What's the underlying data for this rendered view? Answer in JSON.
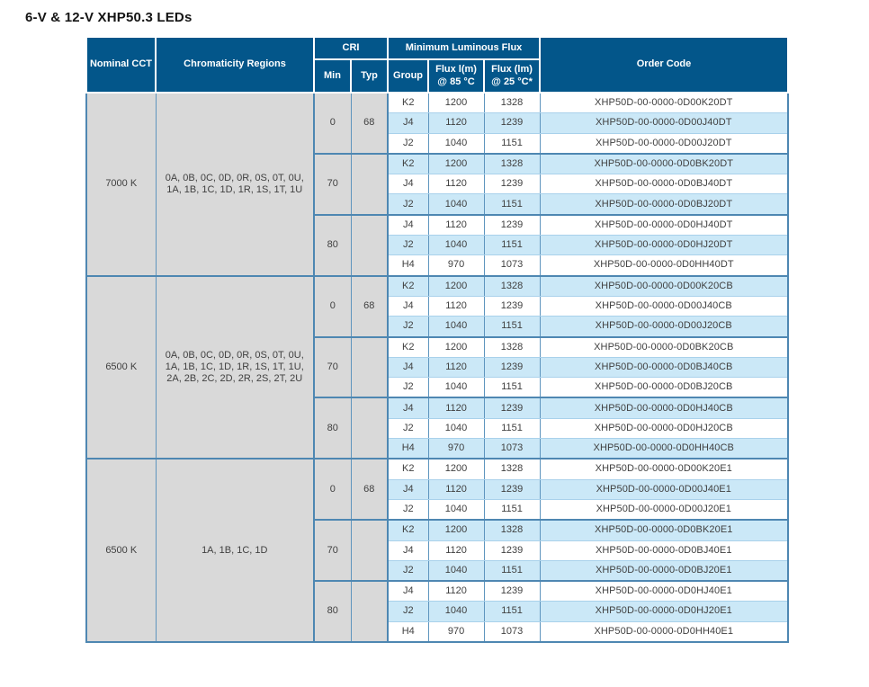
{
  "title": "6-V & 12-V XHP50.3 LEDs",
  "colors": {
    "header_bg": "#03568A",
    "stripe_blue": "#CBE8F7",
    "gray_cell": "#D9D9D9",
    "border_blue": "#4E87B2",
    "body_text": "#404040",
    "header_text": "#FFFFFF"
  },
  "table": {
    "headers": {
      "nominal_cct": "Nominal CCT",
      "chromaticity": "Chromaticity Regions",
      "cri": "CRI",
      "min": "Min",
      "typ": "Typ",
      "flux_header": "Minimum Luminous Flux",
      "group": "Group",
      "flux85": "Flux l(m) @ 85 °C",
      "flux25": "Flux (lm) @ 25 °C*",
      "order_code": "Order Code"
    },
    "groups": [
      {
        "cct": "7000 K",
        "chromaticity": "0A, 0B, 0C, 0D, 0R, 0S, 0T, 0U, 1A, 1B, 1C, 1D, 1R, 1S, 1T, 1U",
        "cri_blocks": [
          {
            "min": "0",
            "typ": "68",
            "rows": [
              [
                "K2",
                "1200",
                "1328",
                "XHP50D-00-0000-0D00K20DT"
              ],
              [
                "J4",
                "1120",
                "1239",
                "XHP50D-00-0000-0D00J40DT"
              ],
              [
                "J2",
                "1040",
                "1151",
                "XHP50D-00-0000-0D00J20DT"
              ]
            ]
          },
          {
            "min": "70",
            "typ": "",
            "rows": [
              [
                "K2",
                "1200",
                "1328",
                "XHP50D-00-0000-0D0BK20DT"
              ],
              [
                "J4",
                "1120",
                "1239",
                "XHP50D-00-0000-0D0BJ40DT"
              ],
              [
                "J2",
                "1040",
                "1151",
                "XHP50D-00-0000-0D0BJ20DT"
              ]
            ]
          },
          {
            "min": "80",
            "typ": "",
            "rows": [
              [
                "J4",
                "1120",
                "1239",
                "XHP50D-00-0000-0D0HJ40DT"
              ],
              [
                "J2",
                "1040",
                "1151",
                "XHP50D-00-0000-0D0HJ20DT"
              ],
              [
                "H4",
                "970",
                "1073",
                "XHP50D-00-0000-0D0HH40DT"
              ]
            ]
          }
        ]
      },
      {
        "cct": "6500 K",
        "chromaticity": "0A, 0B, 0C, 0D, 0R, 0S, 0T, 0U, 1A, 1B, 1C, 1D, 1R, 1S, 1T, 1U, 2A, 2B, 2C, 2D, 2R, 2S, 2T, 2U",
        "cri_blocks": [
          {
            "min": "0",
            "typ": "68",
            "rows": [
              [
                "K2",
                "1200",
                "1328",
                "XHP50D-00-0000-0D00K20CB"
              ],
              [
                "J4",
                "1120",
                "1239",
                "XHP50D-00-0000-0D00J40CB"
              ],
              [
                "J2",
                "1040",
                "1151",
                "XHP50D-00-0000-0D00J20CB"
              ]
            ]
          },
          {
            "min": "70",
            "typ": "",
            "rows": [
              [
                "K2",
                "1200",
                "1328",
                "XHP50D-00-0000-0D0BK20CB"
              ],
              [
                "J4",
                "1120",
                "1239",
                "XHP50D-00-0000-0D0BJ40CB"
              ],
              [
                "J2",
                "1040",
                "1151",
                "XHP50D-00-0000-0D0BJ20CB"
              ]
            ]
          },
          {
            "min": "80",
            "typ": "",
            "rows": [
              [
                "J4",
                "1120",
                "1239",
                "XHP50D-00-0000-0D0HJ40CB"
              ],
              [
                "J2",
                "1040",
                "1151",
                "XHP50D-00-0000-0D0HJ20CB"
              ],
              [
                "H4",
                "970",
                "1073",
                "XHP50D-00-0000-0D0HH40CB"
              ]
            ]
          }
        ]
      },
      {
        "cct": "6500 K",
        "chromaticity": "1A, 1B, 1C, 1D",
        "cri_blocks": [
          {
            "min": "0",
            "typ": "68",
            "rows": [
              [
                "K2",
                "1200",
                "1328",
                "XHP50D-00-0000-0D00K20E1"
              ],
              [
                "J4",
                "1120",
                "1239",
                "XHP50D-00-0000-0D00J40E1"
              ],
              [
                "J2",
                "1040",
                "1151",
                "XHP50D-00-0000-0D00J20E1"
              ]
            ]
          },
          {
            "min": "70",
            "typ": "",
            "rows": [
              [
                "K2",
                "1200",
                "1328",
                "XHP50D-00-0000-0D0BK20E1"
              ],
              [
                "J4",
                "1120",
                "1239",
                "XHP50D-00-0000-0D0BJ40E1"
              ],
              [
                "J2",
                "1040",
                "1151",
                "XHP50D-00-0000-0D0BJ20E1"
              ]
            ]
          },
          {
            "min": "80",
            "typ": "",
            "rows": [
              [
                "J4",
                "1120",
                "1239",
                "XHP50D-00-0000-0D0HJ40E1"
              ],
              [
                "J2",
                "1040",
                "1151",
                "XHP50D-00-0000-0D0HJ20E1"
              ],
              [
                "H4",
                "970",
                "1073",
                "XHP50D-00-0000-0D0HH40E1"
              ]
            ]
          }
        ]
      }
    ]
  }
}
